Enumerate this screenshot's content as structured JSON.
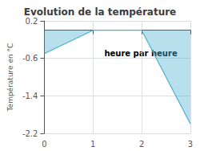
{
  "chart_data": {
    "type": "line",
    "title": "Evolution de la température",
    "ylabel": "Température en °C",
    "annotation": "heure par heure",
    "x": [
      0,
      1,
      2,
      3
    ],
    "values": [
      -0.5,
      0.0,
      0.0,
      -2.0
    ],
    "color": "#4ab0d0",
    "xlim": [
      0,
      3
    ],
    "xticks": [
      0,
      1,
      2,
      3
    ],
    "ylim": [
      -2.2,
      0.2
    ],
    "yticks": [
      0.2,
      -0.6,
      -1.4,
      -2.2
    ],
    "grid": true
  }
}
